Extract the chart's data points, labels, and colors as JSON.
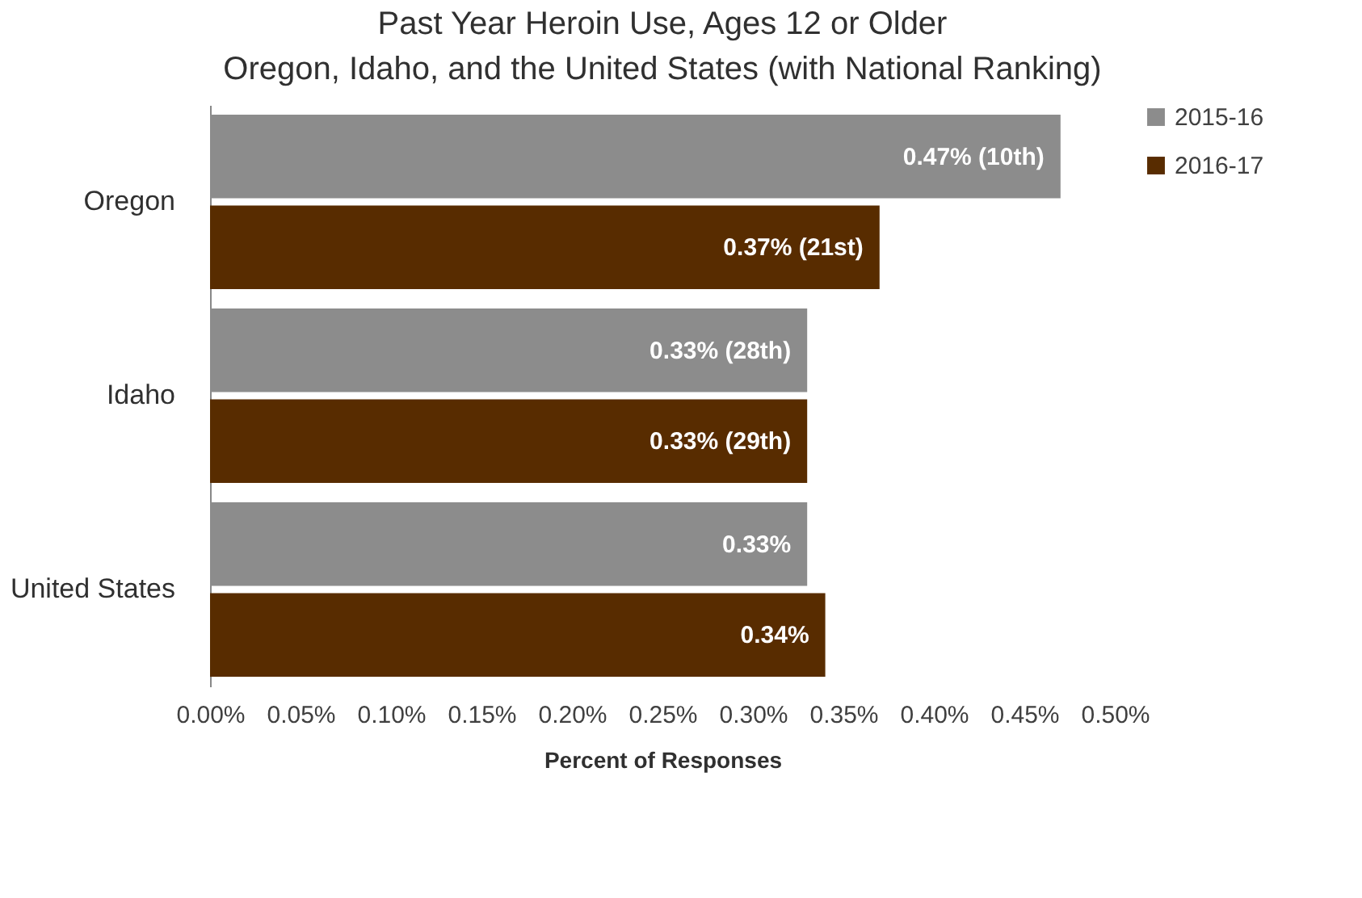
{
  "chart_data": {
    "type": "bar",
    "orientation": "horizontal",
    "title": "Past Year Heroin Use, Ages 12 or Older",
    "subtitle": "Oregon, Idaho, and the United States (with National Ranking)",
    "xlabel": "Percent of Responses",
    "categories": [
      "Oregon",
      "Idaho",
      "United States"
    ],
    "series": [
      {
        "name": "2015-16",
        "color": "#8c8c8c",
        "values": [
          0.47,
          0.33,
          0.33
        ],
        "value_labels": [
          "0.47% (10th)",
          "0.33% (28th)",
          "0.33%"
        ]
      },
      {
        "name": "2016-17",
        "color": "#582c00",
        "values": [
          0.37,
          0.33,
          0.34
        ],
        "value_labels": [
          "0.37% (21st)",
          "0.33% (29th)",
          "0.34%"
        ]
      }
    ],
    "xlim": [
      0,
      0.5
    ],
    "xticks": [
      {
        "value": 0,
        "label": "0.00%"
      },
      {
        "value": 0.05,
        "label": "0.05%"
      },
      {
        "value": 0.1,
        "label": "0.10%"
      },
      {
        "value": 0.15,
        "label": "0.15%"
      },
      {
        "value": 0.2,
        "label": "0.20%"
      },
      {
        "value": 0.25,
        "label": "0.25%"
      },
      {
        "value": 0.3,
        "label": "0.30%"
      },
      {
        "value": 0.35,
        "label": "0.35%"
      },
      {
        "value": 0.4,
        "label": "0.40%"
      },
      {
        "value": 0.45,
        "label": "0.45%"
      },
      {
        "value": 0.5,
        "label": "0.50%"
      }
    ],
    "grid": false,
    "legend": "right"
  }
}
